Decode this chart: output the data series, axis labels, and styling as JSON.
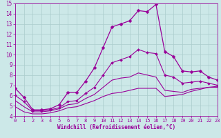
{
  "background_color": "#cce8e8",
  "line_color": "#990099",
  "grid_color": "#aacccc",
  "xlabel": "Windchill (Refroidissement éolien,°C)",
  "xlim": [
    0,
    23
  ],
  "ylim": [
    4,
    15
  ],
  "xticks": [
    0,
    1,
    2,
    3,
    4,
    5,
    6,
    7,
    8,
    9,
    10,
    11,
    12,
    13,
    14,
    15,
    16,
    17,
    18,
    19,
    20,
    21,
    22,
    23
  ],
  "yticks": [
    4,
    5,
    6,
    7,
    8,
    9,
    10,
    11,
    12,
    13,
    14,
    15
  ],
  "series": [
    {
      "x": [
        0,
        1,
        2,
        3,
        4,
        5,
        6,
        7,
        8,
        9,
        10,
        11,
        12,
        13,
        14,
        15,
        16,
        17,
        18,
        19,
        20,
        21,
        22,
        23
      ],
      "y": [
        6.7,
        5.8,
        4.6,
        4.6,
        4.7,
        5.1,
        6.3,
        6.3,
        7.4,
        8.7,
        10.7,
        12.7,
        13.0,
        13.3,
        14.3,
        14.2,
        14.9,
        10.3,
        9.8,
        8.4,
        8.3,
        8.4,
        7.8,
        7.5
      ],
      "marker": "D",
      "markersize": 2.5,
      "linewidth": 0.9
    },
    {
      "x": [
        0,
        1,
        2,
        3,
        4,
        5,
        6,
        7,
        8,
        9,
        10,
        11,
        12,
        13,
        14,
        15,
        16,
        17,
        18,
        19,
        20,
        21,
        22,
        23
      ],
      "y": [
        6.0,
        5.4,
        4.5,
        4.5,
        4.6,
        4.8,
        5.4,
        5.5,
        6.2,
        6.8,
        8.0,
        9.2,
        9.5,
        9.8,
        10.5,
        10.2,
        10.1,
        8.0,
        7.8,
        7.2,
        7.3,
        7.4,
        7.2,
        7.0
      ],
      "marker": "D",
      "markersize": 2.0,
      "linewidth": 0.8
    },
    {
      "x": [
        0,
        1,
        2,
        3,
        4,
        5,
        6,
        7,
        8,
        9,
        10,
        11,
        12,
        13,
        14,
        15,
        16,
        17,
        18,
        19,
        20,
        21,
        22,
        23
      ],
      "y": [
        5.5,
        4.9,
        4.4,
        4.4,
        4.5,
        4.7,
        5.1,
        5.2,
        5.7,
        6.1,
        6.8,
        7.5,
        7.7,
        7.8,
        8.2,
        8.0,
        7.8,
        6.5,
        6.4,
        6.3,
        6.6,
        6.7,
        6.8,
        6.8
      ],
      "marker": null,
      "markersize": 0,
      "linewidth": 0.8
    },
    {
      "x": [
        0,
        1,
        2,
        3,
        4,
        5,
        6,
        7,
        8,
        9,
        10,
        11,
        12,
        13,
        14,
        15,
        16,
        17,
        18,
        19,
        20,
        21,
        22,
        23
      ],
      "y": [
        4.9,
        4.4,
        4.2,
        4.2,
        4.3,
        4.5,
        4.8,
        4.9,
        5.2,
        5.5,
        5.9,
        6.2,
        6.3,
        6.5,
        6.7,
        6.7,
        6.7,
        5.9,
        6.0,
        6.1,
        6.4,
        6.6,
        6.8,
        6.9
      ],
      "marker": null,
      "markersize": 0,
      "linewidth": 0.8
    }
  ]
}
